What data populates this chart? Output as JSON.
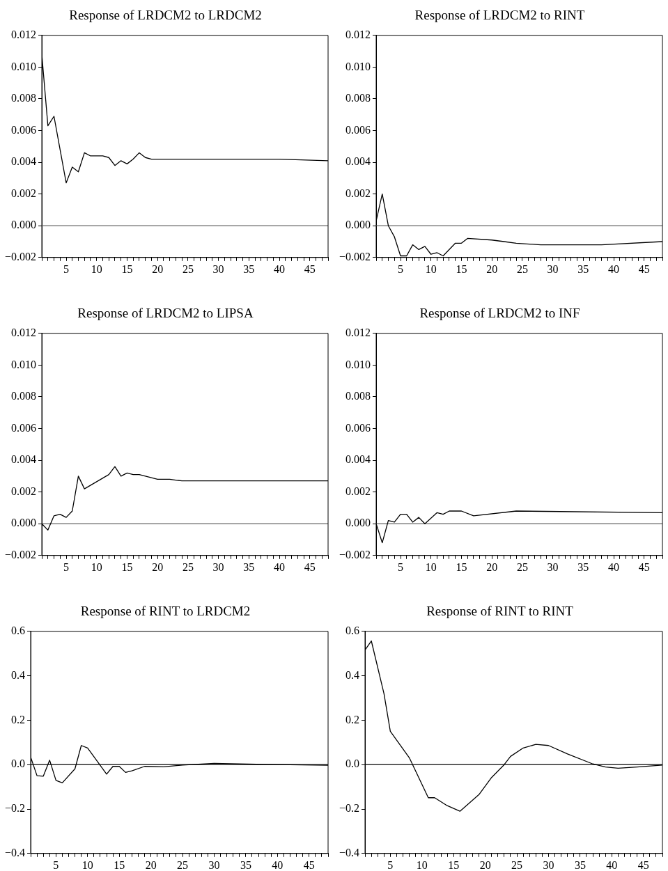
{
  "chart_data": [
    {
      "type": "line",
      "title": "Response of LRDCM2 to LRDCM2",
      "color": "#000000",
      "x": [
        1,
        2,
        3,
        4,
        5,
        6,
        7,
        8,
        9,
        10,
        11,
        12,
        13,
        14,
        15,
        16,
        17,
        18,
        19,
        20,
        30,
        40,
        48
      ],
      "values": [
        0.0108,
        0.0063,
        0.0069,
        0.0048,
        0.0027,
        0.0037,
        0.0034,
        0.0046,
        0.0044,
        0.0044,
        0.0044,
        0.0043,
        0.0038,
        0.0041,
        0.0039,
        0.0042,
        0.0046,
        0.0043,
        0.0042,
        0.0042,
        0.0042,
        0.0042,
        0.0041
      ],
      "xlim": [
        1,
        48
      ],
      "xticks": [
        {
          "value": 1,
          "label": null
        },
        {
          "value": 2,
          "label": null
        },
        {
          "value": 3,
          "label": null
        },
        {
          "value": 4,
          "label": null
        },
        5,
        {
          "value": 6,
          "label": null
        },
        {
          "value": 7,
          "label": null
        },
        {
          "value": 8,
          "label": null
        },
        {
          "value": 9,
          "label": null
        },
        10,
        {
          "value": 11,
          "label": null
        },
        {
          "value": 12,
          "label": null
        },
        {
          "value": 13,
          "label": null
        },
        {
          "value": 14,
          "label": null
        },
        15,
        {
          "value": 16,
          "label": null
        },
        {
          "value": 17,
          "label": null
        },
        {
          "value": 18,
          "label": null
        },
        {
          "value": 19,
          "label": null
        },
        20,
        {
          "value": 21,
          "label": null
        },
        {
          "value": 22,
          "label": null
        },
        {
          "value": 23,
          "label": null
        },
        {
          "value": 24,
          "label": null
        },
        25,
        {
          "value": 26,
          "label": null
        },
        {
          "value": 27,
          "label": null
        },
        {
          "value": 28,
          "label": null
        },
        {
          "value": 29,
          "label": null
        },
        30,
        {
          "value": 31,
          "label": null
        },
        {
          "value": 32,
          "label": null
        },
        {
          "value": 33,
          "label": null
        },
        {
          "value": 34,
          "label": null
        },
        35,
        {
          "value": 36,
          "label": null
        },
        {
          "value": 37,
          "label": null
        },
        {
          "value": 38,
          "label": null
        },
        {
          "value": 39,
          "label": null
        },
        40,
        {
          "value": 41,
          "label": null
        },
        {
          "value": 42,
          "label": null
        },
        {
          "value": 43,
          "label": null
        },
        {
          "value": 44,
          "label": null
        },
        45,
        {
          "value": 46,
          "label": null
        },
        {
          "value": 47,
          "label": null
        },
        {
          "value": 48,
          "label": null
        }
      ],
      "ylim": [
        -0.002,
        0.012
      ],
      "yticks": [
        {
          "value": -0.002,
          "label": "−0.002"
        },
        {
          "value": 0,
          "label": "0.000"
        },
        0.002,
        0.004,
        0.006,
        0.008,
        {
          "value": 0.01,
          "label": "0.010"
        },
        0.012
      ],
      "ref_lines": [
        {
          "axis": "y",
          "value": 0,
          "color": "#808080"
        }
      ]
    },
    {
      "type": "line",
      "title": "Response of LRDCM2 to RINT",
      "color": "#000000",
      "x": [
        1,
        2,
        3,
        4,
        5,
        6,
        7,
        8,
        9,
        10,
        11,
        12,
        14,
        15,
        16,
        20,
        22,
        24,
        28,
        32,
        38,
        48
      ],
      "values": [
        0.0003,
        0.002,
        0.0,
        -0.0007,
        -0.0019,
        -0.0019,
        -0.0012,
        -0.0015,
        -0.0013,
        -0.0018,
        -0.0017,
        -0.0019,
        -0.0011,
        -0.0011,
        -0.0008,
        -0.0009,
        -0.001,
        -0.0011,
        -0.0012,
        -0.0012,
        -0.0012,
        -0.001
      ],
      "xlim": [
        1,
        48
      ],
      "xticks": [
        {
          "value": 1,
          "label": null
        },
        {
          "value": 2,
          "label": null
        },
        {
          "value": 3,
          "label": null
        },
        {
          "value": 4,
          "label": null
        },
        5,
        {
          "value": 6,
          "label": null
        },
        {
          "value": 7,
          "label": null
        },
        {
          "value": 8,
          "label": null
        },
        {
          "value": 9,
          "label": null
        },
        10,
        {
          "value": 11,
          "label": null
        },
        {
          "value": 12,
          "label": null
        },
        {
          "value": 13,
          "label": null
        },
        {
          "value": 14,
          "label": null
        },
        15,
        {
          "value": 16,
          "label": null
        },
        {
          "value": 17,
          "label": null
        },
        {
          "value": 18,
          "label": null
        },
        {
          "value": 19,
          "label": null
        },
        20,
        {
          "value": 21,
          "label": null
        },
        {
          "value": 22,
          "label": null
        },
        {
          "value": 23,
          "label": null
        },
        {
          "value": 24,
          "label": null
        },
        25,
        {
          "value": 26,
          "label": null
        },
        {
          "value": 27,
          "label": null
        },
        {
          "value": 28,
          "label": null
        },
        {
          "value": 29,
          "label": null
        },
        30,
        {
          "value": 31,
          "label": null
        },
        {
          "value": 32,
          "label": null
        },
        {
          "value": 33,
          "label": null
        },
        {
          "value": 34,
          "label": null
        },
        35,
        {
          "value": 36,
          "label": null
        },
        {
          "value": 37,
          "label": null
        },
        {
          "value": 38,
          "label": null
        },
        {
          "value": 39,
          "label": null
        },
        40,
        {
          "value": 41,
          "label": null
        },
        {
          "value": 42,
          "label": null
        },
        {
          "value": 43,
          "label": null
        },
        {
          "value": 44,
          "label": null
        },
        45,
        {
          "value": 46,
          "label": null
        },
        {
          "value": 47,
          "label": null
        },
        {
          "value": 48,
          "label": null
        }
      ],
      "ylim": [
        -0.002,
        0.012
      ],
      "yticks": [
        {
          "value": -0.002,
          "label": "−0.002"
        },
        {
          "value": 0,
          "label": "0.000"
        },
        0.002,
        0.004,
        0.006,
        0.008,
        {
          "value": 0.01,
          "label": "0.010"
        },
        0.012
      ],
      "ref_lines": [
        {
          "axis": "y",
          "value": 0,
          "color": "#808080"
        }
      ]
    },
    {
      "type": "line",
      "title": "Response of LRDCM2 to LIPSA",
      "color": "#000000",
      "x": [
        1,
        2,
        3,
        4,
        5,
        6,
        7,
        8,
        12,
        13,
        14,
        15,
        16,
        17,
        19,
        20,
        22,
        24,
        48
      ],
      "values": [
        0,
        -0.0004,
        0.0005,
        0.0006,
        0.0004,
        0.0008,
        0.003,
        0.0022,
        0.0031,
        0.0036,
        0.003,
        0.0032,
        0.0031,
        0.0031,
        0.0029,
        0.0028,
        0.0028,
        0.0027,
        0.0027
      ],
      "xlim": [
        1,
        48
      ],
      "xticks": [
        {
          "value": 1,
          "label": null
        },
        {
          "value": 2,
          "label": null
        },
        {
          "value": 3,
          "label": null
        },
        {
          "value": 4,
          "label": null
        },
        5,
        {
          "value": 6,
          "label": null
        },
        {
          "value": 7,
          "label": null
        },
        {
          "value": 8,
          "label": null
        },
        {
          "value": 9,
          "label": null
        },
        10,
        {
          "value": 11,
          "label": null
        },
        {
          "value": 12,
          "label": null
        },
        {
          "value": 13,
          "label": null
        },
        {
          "value": 14,
          "label": null
        },
        15,
        {
          "value": 16,
          "label": null
        },
        {
          "value": 17,
          "label": null
        },
        {
          "value": 18,
          "label": null
        },
        {
          "value": 19,
          "label": null
        },
        20,
        {
          "value": 21,
          "label": null
        },
        {
          "value": 22,
          "label": null
        },
        {
          "value": 23,
          "label": null
        },
        {
          "value": 24,
          "label": null
        },
        25,
        {
          "value": 26,
          "label": null
        },
        {
          "value": 27,
          "label": null
        },
        {
          "value": 28,
          "label": null
        },
        {
          "value": 29,
          "label": null
        },
        30,
        {
          "value": 31,
          "label": null
        },
        {
          "value": 32,
          "label": null
        },
        {
          "value": 33,
          "label": null
        },
        {
          "value": 34,
          "label": null
        },
        35,
        {
          "value": 36,
          "label": null
        },
        {
          "value": 37,
          "label": null
        },
        {
          "value": 38,
          "label": null
        },
        {
          "value": 39,
          "label": null
        },
        40,
        {
          "value": 41,
          "label": null
        },
        {
          "value": 42,
          "label": null
        },
        {
          "value": 43,
          "label": null
        },
        {
          "value": 44,
          "label": null
        },
        45,
        {
          "value": 46,
          "label": null
        },
        {
          "value": 47,
          "label": null
        },
        {
          "value": 48,
          "label": null
        }
      ],
      "ylim": [
        -0.002,
        0.012
      ],
      "yticks": [
        {
          "value": -0.002,
          "label": "−0.002"
        },
        {
          "value": 0,
          "label": "0.000"
        },
        0.002,
        0.004,
        0.006,
        0.008,
        {
          "value": 0.01,
          "label": "0.010"
        },
        0.012
      ],
      "ref_lines": [
        {
          "axis": "y",
          "value": 0,
          "color": "#808080"
        }
      ]
    },
    {
      "type": "line",
      "title": "Response of LRDCM2 to INF",
      "color": "#000000",
      "x": [
        1,
        2,
        3,
        4,
        5,
        6,
        7,
        8,
        9,
        11,
        12,
        13,
        15,
        17,
        24,
        48
      ],
      "values": [
        0,
        -0.0012,
        0.0002,
        0.0001,
        0.0006,
        0.0006,
        0.0001,
        0.0004,
        0,
        0.0007,
        0.0006,
        0.0008,
        0.0008,
        0.0005,
        0.0008,
        0.0007
      ],
      "xlim": [
        1,
        48
      ],
      "xticks": [
        {
          "value": 1,
          "label": null
        },
        {
          "value": 2,
          "label": null
        },
        {
          "value": 3,
          "label": null
        },
        {
          "value": 4,
          "label": null
        },
        5,
        {
          "value": 6,
          "label": null
        },
        {
          "value": 7,
          "label": null
        },
        {
          "value": 8,
          "label": null
        },
        {
          "value": 9,
          "label": null
        },
        10,
        {
          "value": 11,
          "label": null
        },
        {
          "value": 12,
          "label": null
        },
        {
          "value": 13,
          "label": null
        },
        {
          "value": 14,
          "label": null
        },
        15,
        {
          "value": 16,
          "label": null
        },
        {
          "value": 17,
          "label": null
        },
        {
          "value": 18,
          "label": null
        },
        {
          "value": 19,
          "label": null
        },
        20,
        {
          "value": 21,
          "label": null
        },
        {
          "value": 22,
          "label": null
        },
        {
          "value": 23,
          "label": null
        },
        {
          "value": 24,
          "label": null
        },
        25,
        {
          "value": 26,
          "label": null
        },
        {
          "value": 27,
          "label": null
        },
        {
          "value": 28,
          "label": null
        },
        {
          "value": 29,
          "label": null
        },
        30,
        {
          "value": 31,
          "label": null
        },
        {
          "value": 32,
          "label": null
        },
        {
          "value": 33,
          "label": null
        },
        {
          "value": 34,
          "label": null
        },
        35,
        {
          "value": 36,
          "label": null
        },
        {
          "value": 37,
          "label": null
        },
        {
          "value": 38,
          "label": null
        },
        {
          "value": 39,
          "label": null
        },
        40,
        {
          "value": 41,
          "label": null
        },
        {
          "value": 42,
          "label": null
        },
        {
          "value": 43,
          "label": null
        },
        {
          "value": 44,
          "label": null
        },
        45,
        {
          "value": 46,
          "label": null
        },
        {
          "value": 47,
          "label": null
        },
        {
          "value": 48,
          "label": null
        }
      ],
      "ylim": [
        -0.002,
        0.012
      ],
      "yticks": [
        {
          "value": -0.002,
          "label": "−0.002"
        },
        {
          "value": 0,
          "label": "0.000"
        },
        0.002,
        0.004,
        0.006,
        0.008,
        {
          "value": 0.01,
          "label": "0.010"
        },
        0.012
      ],
      "ref_lines": [
        {
          "axis": "y",
          "value": 0,
          "color": "#808080"
        }
      ]
    },
    {
      "type": "line",
      "title": "Response of RINT to LRDCM2",
      "color": "#000000",
      "x": [
        1,
        2,
        3,
        4,
        5,
        6,
        8,
        9,
        10,
        13,
        14,
        15,
        16,
        17,
        19,
        22,
        25,
        30,
        38,
        48
      ],
      "values": [
        0.034,
        -0.05,
        -0.052,
        0.02,
        -0.071,
        -0.082,
        -0.019,
        0.086,
        0.075,
        -0.043,
        -0.008,
        -0.008,
        -0.035,
        -0.028,
        -0.008,
        -0.01,
        -0.002,
        0.006,
        0.001,
        -0.003
      ],
      "xlim": [
        1,
        48
      ],
      "xticks": [
        {
          "value": 1,
          "label": null
        },
        {
          "value": 2,
          "label": null
        },
        {
          "value": 3,
          "label": null
        },
        {
          "value": 4,
          "label": null
        },
        5,
        {
          "value": 6,
          "label": null
        },
        {
          "value": 7,
          "label": null
        },
        {
          "value": 8,
          "label": null
        },
        {
          "value": 9,
          "label": null
        },
        10,
        {
          "value": 11,
          "label": null
        },
        {
          "value": 12,
          "label": null
        },
        {
          "value": 13,
          "label": null
        },
        {
          "value": 14,
          "label": null
        },
        15,
        {
          "value": 16,
          "label": null
        },
        {
          "value": 17,
          "label": null
        },
        {
          "value": 18,
          "label": null
        },
        {
          "value": 19,
          "label": null
        },
        20,
        {
          "value": 21,
          "label": null
        },
        {
          "value": 22,
          "label": null
        },
        {
          "value": 23,
          "label": null
        },
        {
          "value": 24,
          "label": null
        },
        25,
        {
          "value": 26,
          "label": null
        },
        {
          "value": 27,
          "label": null
        },
        {
          "value": 28,
          "label": null
        },
        {
          "value": 29,
          "label": null
        },
        30,
        {
          "value": 31,
          "label": null
        },
        {
          "value": 32,
          "label": null
        },
        {
          "value": 33,
          "label": null
        },
        {
          "value": 34,
          "label": null
        },
        35,
        {
          "value": 36,
          "label": null
        },
        {
          "value": 37,
          "label": null
        },
        {
          "value": 38,
          "label": null
        },
        {
          "value": 39,
          "label": null
        },
        40,
        {
          "value": 41,
          "label": null
        },
        {
          "value": 42,
          "label": null
        },
        {
          "value": 43,
          "label": null
        },
        {
          "value": 44,
          "label": null
        },
        45,
        {
          "value": 46,
          "label": null
        },
        {
          "value": 47,
          "label": null
        },
        {
          "value": 48,
          "label": null
        }
      ],
      "ylim": [
        -0.4,
        0.6
      ],
      "yticks": [
        {
          "value": -0.4,
          "label": "−0.4"
        },
        {
          "value": -0.2,
          "label": "−0.2"
        },
        {
          "value": 0,
          "label": "0.0"
        },
        0.2,
        0.4,
        0.6
      ],
      "ref_lines": [
        {
          "axis": "y",
          "value": 0,
          "color": "#000000"
        }
      ]
    },
    {
      "type": "line",
      "title": "Response of RINT to RINT",
      "color": "#000000",
      "x": [
        1,
        2,
        4,
        5,
        8,
        11,
        12,
        14,
        16,
        17,
        19,
        21,
        23,
        24,
        26,
        28,
        30,
        33,
        37,
        39,
        41,
        44,
        48
      ],
      "values": [
        0.516,
        0.557,
        0.319,
        0.15,
        0.031,
        -0.149,
        -0.149,
        -0.185,
        -0.21,
        -0.185,
        -0.135,
        -0.058,
        0,
        0.037,
        0.075,
        0.091,
        0.086,
        0.048,
        0.003,
        -0.011,
        -0.016,
        -0.011,
        -0.002
      ],
      "xlim": [
        1,
        48
      ],
      "xticks": [
        {
          "value": 1,
          "label": null
        },
        {
          "value": 2,
          "label": null
        },
        {
          "value": 3,
          "label": null
        },
        {
          "value": 4,
          "label": null
        },
        5,
        {
          "value": 6,
          "label": null
        },
        {
          "value": 7,
          "label": null
        },
        {
          "value": 8,
          "label": null
        },
        {
          "value": 9,
          "label": null
        },
        10,
        {
          "value": 11,
          "label": null
        },
        {
          "value": 12,
          "label": null
        },
        {
          "value": 13,
          "label": null
        },
        {
          "value": 14,
          "label": null
        },
        15,
        {
          "value": 16,
          "label": null
        },
        {
          "value": 17,
          "label": null
        },
        {
          "value": 18,
          "label": null
        },
        {
          "value": 19,
          "label": null
        },
        20,
        {
          "value": 21,
          "label": null
        },
        {
          "value": 22,
          "label": null
        },
        {
          "value": 23,
          "label": null
        },
        {
          "value": 24,
          "label": null
        },
        25,
        {
          "value": 26,
          "label": null
        },
        {
          "value": 27,
          "label": null
        },
        {
          "value": 28,
          "label": null
        },
        {
          "value": 29,
          "label": null
        },
        30,
        {
          "value": 31,
          "label": null
        },
        {
          "value": 32,
          "label": null
        },
        {
          "value": 33,
          "label": null
        },
        {
          "value": 34,
          "label": null
        },
        35,
        {
          "value": 36,
          "label": null
        },
        {
          "value": 37,
          "label": null
        },
        {
          "value": 38,
          "label": null
        },
        {
          "value": 39,
          "label": null
        },
        40,
        {
          "value": 41,
          "label": null
        },
        {
          "value": 42,
          "label": null
        },
        {
          "value": 43,
          "label": null
        },
        {
          "value": 44,
          "label": null
        },
        45,
        {
          "value": 46,
          "label": null
        },
        {
          "value": 47,
          "label": null
        },
        {
          "value": 48,
          "label": null
        }
      ],
      "ylim": [
        -0.4,
        0.6
      ],
      "yticks": [
        {
          "value": -0.4,
          "label": "−0.4"
        },
        {
          "value": -0.2,
          "label": "−0.2"
        },
        {
          "value": 0,
          "label": "0.0"
        },
        0.2,
        0.4,
        0.6
      ],
      "ref_lines": [
        {
          "axis": "y",
          "value": 0,
          "color": "#000000"
        }
      ]
    }
  ]
}
